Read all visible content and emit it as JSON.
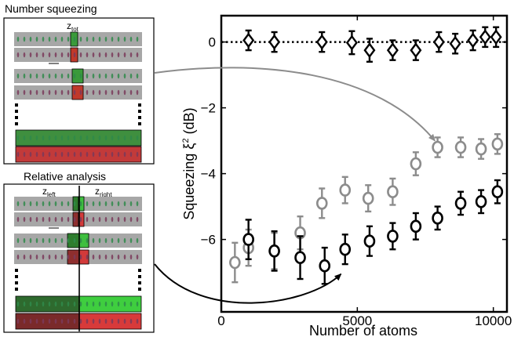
{
  "panels": {
    "top_title": "Number squeezing",
    "top_label_main": "z",
    "top_label_sub": "tot",
    "bottom_title": "Relative analysis",
    "bottom_left_main": "z",
    "bottom_left_sub": "left",
    "bottom_right_main": "z",
    "bottom_right_sub": "right"
  },
  "colors": {
    "series_black": "#000000",
    "series_gray": "#8c8c8c",
    "green_strip": "#9fb89f",
    "red_strip": "#b89a9f",
    "green_box": "#2e8b2e",
    "red_box": "#c0392b"
  },
  "chart_data": {
    "type": "scatter",
    "xlabel": "Number of atoms",
    "ylabel_main": "Squeezing ξ",
    "ylabel_sup": "2",
    "ylabel_unit": " (dB)",
    "xlim": [
      0,
      10500
    ],
    "ylim": [
      -8.2,
      0.8
    ],
    "xticks": [
      0,
      5000,
      10000
    ],
    "xtick_labels": [
      "0",
      "5000",
      "10000"
    ],
    "yticks": [
      0,
      -2,
      -4,
      -6
    ],
    "ytick_labels": [
      "0",
      "−2",
      "−4",
      "−6"
    ],
    "reference_line": {
      "y": 0,
      "style": "dotted"
    },
    "series": [
      {
        "marker": "diamond",
        "color": "#000000",
        "points": [
          {
            "x": 1000,
            "y": 0.05,
            "err": 0.3
          },
          {
            "x": 1950,
            "y": 0.0,
            "err": 0.3
          },
          {
            "x": 3700,
            "y": 0.0,
            "err": 0.3
          },
          {
            "x": 4800,
            "y": -0.02,
            "err": 0.35
          },
          {
            "x": 5450,
            "y": -0.25,
            "err": 0.35
          },
          {
            "x": 6300,
            "y": -0.25,
            "err": 0.3
          },
          {
            "x": 7150,
            "y": -0.25,
            "err": 0.3
          },
          {
            "x": 8000,
            "y": 0.0,
            "err": 0.3
          },
          {
            "x": 8600,
            "y": -0.05,
            "err": 0.3
          },
          {
            "x": 9250,
            "y": 0.05,
            "err": 0.3
          },
          {
            "x": 9700,
            "y": 0.15,
            "err": 0.3
          },
          {
            "x": 10100,
            "y": 0.15,
            "err": 0.3
          }
        ]
      },
      {
        "marker": "circle",
        "color": "#8c8c8c",
        "points": [
          {
            "x": 500,
            "y": -6.7,
            "err": 0.6
          },
          {
            "x": 1000,
            "y": -6.25,
            "err": 0.55
          },
          {
            "x": 1950,
            "y": -6.35,
            "err": 0.55
          },
          {
            "x": 2900,
            "y": -5.8,
            "err": 0.5
          },
          {
            "x": 3700,
            "y": -4.9,
            "err": 0.45
          },
          {
            "x": 4550,
            "y": -4.5,
            "err": 0.4
          },
          {
            "x": 5400,
            "y": -4.75,
            "err": 0.4
          },
          {
            "x": 6300,
            "y": -4.55,
            "err": 0.4
          },
          {
            "x": 7150,
            "y": -3.7,
            "err": 0.35
          },
          {
            "x": 7950,
            "y": -3.2,
            "err": 0.3
          },
          {
            "x": 8800,
            "y": -3.2,
            "err": 0.3
          },
          {
            "x": 9550,
            "y": -3.25,
            "err": 0.3
          },
          {
            "x": 10150,
            "y": -3.1,
            "err": 0.3
          }
        ]
      },
      {
        "marker": "circle",
        "color": "#000000",
        "points": [
          {
            "x": 1000,
            "y": -6.0,
            "err": 0.6
          },
          {
            "x": 1950,
            "y": -6.35,
            "err": 0.6
          },
          {
            "x": 2900,
            "y": -6.55,
            "err": 0.65
          },
          {
            "x": 3800,
            "y": -6.8,
            "err": 0.55
          },
          {
            "x": 4550,
            "y": -6.3,
            "err": 0.45
          },
          {
            "x": 5450,
            "y": -6.05,
            "err": 0.45
          },
          {
            "x": 6300,
            "y": -5.9,
            "err": 0.4
          },
          {
            "x": 7150,
            "y": -5.6,
            "err": 0.4
          },
          {
            "x": 7950,
            "y": -5.35,
            "err": 0.35
          },
          {
            "x": 8800,
            "y": -4.9,
            "err": 0.35
          },
          {
            "x": 9550,
            "y": -4.85,
            "err": 0.35
          },
          {
            "x": 10150,
            "y": -4.55,
            "err": 0.35
          }
        ]
      }
    ],
    "annotations": [
      {
        "type": "arrow",
        "color": "#8c8c8c",
        "from": "panel-number-squeezing",
        "to_x": 7850,
        "to_y": -3.0
      },
      {
        "type": "arrow",
        "color": "#000000",
        "from": "panel-relative-analysis",
        "to_x": 4400,
        "to_y": -7.05
      }
    ]
  }
}
